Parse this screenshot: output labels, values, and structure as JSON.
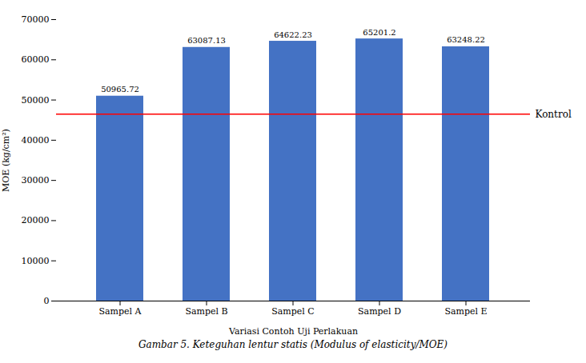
{
  "chart_data": {
    "type": "bar",
    "categories": [
      "Sampel A",
      "Sampel B",
      "Sampel C",
      "Sampel D",
      "Sampel E"
    ],
    "values": [
      50965.72,
      63087.13,
      64622.23,
      65201.2,
      63248.22
    ],
    "color": "#4472C4",
    "xlabel": "Variasi Contoh Uji Perlakuan",
    "ylabel": "MOE (kg/cm²)",
    "ylim": [
      0,
      70000
    ],
    "yticks": [
      0,
      10000,
      20000,
      30000,
      40000,
      50000,
      60000,
      70000
    ],
    "data_labels": true,
    "grid": false,
    "annotations": [
      {
        "type": "hline",
        "y": 46500,
        "text": "Kontrol",
        "color": "#FF0000"
      }
    ],
    "caption": "Gambar 5. Keteguhan lentur statis (Modulus of elasticity/MOE)"
  }
}
